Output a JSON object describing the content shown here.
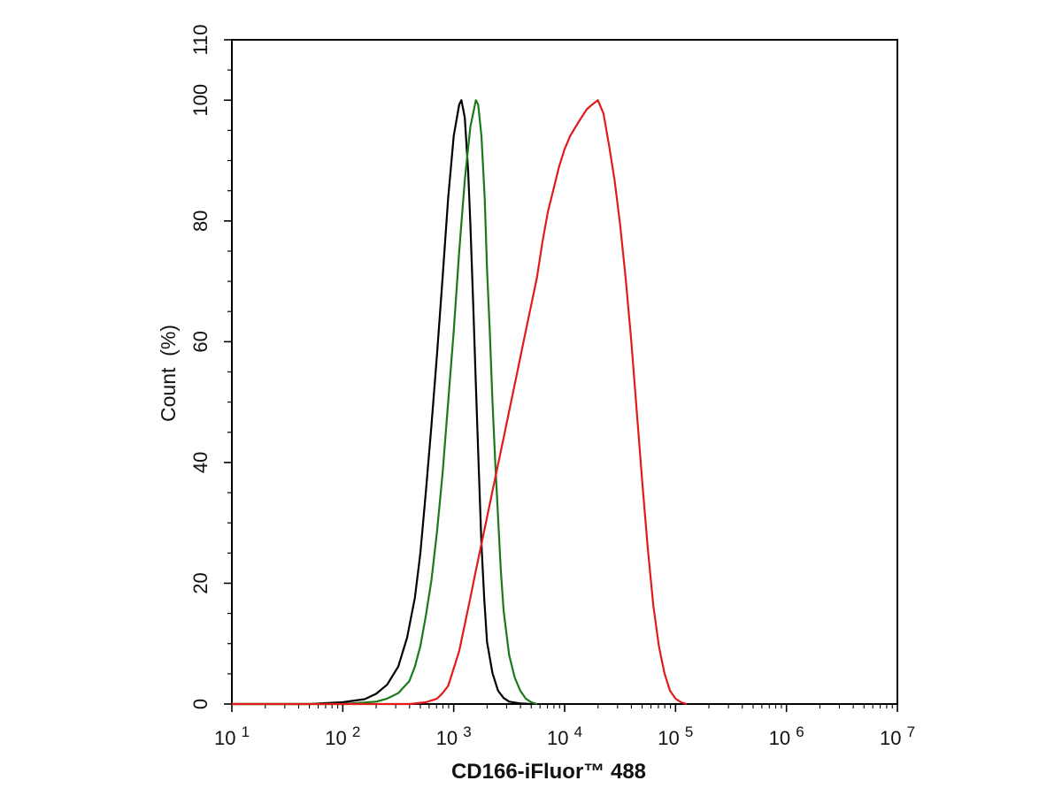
{
  "chart_data": {
    "type": "line",
    "title": "",
    "xlabel": "CD166-iFluor™ 488",
    "ylabel": "Count  (%)",
    "x_scale": "log",
    "xlim": [
      10,
      10000000
    ],
    "ylim": [
      0,
      110
    ],
    "grid": false,
    "legend": "none",
    "x_ticks": [
      {
        "value": 10,
        "base": "10",
        "exp": "1"
      },
      {
        "value": 100,
        "base": "10",
        "exp": "2"
      },
      {
        "value": 1000,
        "base": "10",
        "exp": "3"
      },
      {
        "value": 10000,
        "base": "10",
        "exp": "4"
      },
      {
        "value": 100000,
        "base": "10",
        "exp": "5"
      },
      {
        "value": 1000000,
        "base": "10",
        "exp": "6"
      },
      {
        "value": 10000000,
        "base": "10",
        "exp": "7"
      }
    ],
    "y_ticks": [
      0,
      20,
      40,
      60,
      80,
      100,
      110
    ],
    "y_tick_labels": [
      "0",
      "20",
      "40",
      "60",
      "80",
      "100",
      "110"
    ],
    "series": [
      {
        "color": "#000000",
        "points": [
          [
            50,
            0
          ],
          [
            100,
            0.3
          ],
          [
            158,
            0.8
          ],
          [
            200,
            1.7
          ],
          [
            251,
            3.2
          ],
          [
            316,
            6.2
          ],
          [
            380,
            11.0
          ],
          [
            447,
            17.6
          ],
          [
            501,
            25.0
          ],
          [
            562,
            35.3
          ],
          [
            631,
            46.3
          ],
          [
            708,
            58.1
          ],
          [
            794,
            70.6
          ],
          [
            891,
            83.8
          ],
          [
            1000,
            94.1
          ],
          [
            1122,
            99.3
          ],
          [
            1175,
            100
          ],
          [
            1259,
            97.1
          ],
          [
            1349,
            88.2
          ],
          [
            1413,
            79.4
          ],
          [
            1500,
            66.2
          ],
          [
            1585,
            52.9
          ],
          [
            1678,
            39.7
          ],
          [
            1778,
            26.5
          ],
          [
            1884,
            17.6
          ],
          [
            1995,
            10.3
          ],
          [
            2239,
            5.1
          ],
          [
            2512,
            2.2
          ],
          [
            2818,
            1.0
          ],
          [
            3162,
            0.4
          ],
          [
            3981,
            0.1
          ],
          [
            5000,
            0
          ]
        ]
      },
      {
        "color": "#1a7a1a",
        "points": [
          [
            100,
            0
          ],
          [
            200,
            0.4
          ],
          [
            251,
            0.9
          ],
          [
            316,
            1.8
          ],
          [
            398,
            3.8
          ],
          [
            447,
            6.2
          ],
          [
            501,
            9.6
          ],
          [
            562,
            14.7
          ],
          [
            631,
            20.6
          ],
          [
            708,
            28.7
          ],
          [
            794,
            38.2
          ],
          [
            891,
            50.0
          ],
          [
            1000,
            61.8
          ],
          [
            1122,
            75.0
          ],
          [
            1259,
            86.8
          ],
          [
            1413,
            95.6
          ],
          [
            1585,
            100
          ],
          [
            1660,
            99.3
          ],
          [
            1778,
            94.1
          ],
          [
            1905,
            83.8
          ],
          [
            1995,
            72.1
          ],
          [
            2113,
            61.8
          ],
          [
            2239,
            50.0
          ],
          [
            2371,
            39.7
          ],
          [
            2512,
            30.9
          ],
          [
            2661,
            22.1
          ],
          [
            2818,
            15.4
          ],
          [
            3162,
            8.1
          ],
          [
            3548,
            4.4
          ],
          [
            3981,
            2.2
          ],
          [
            4467,
            0.9
          ],
          [
            5012,
            0.3
          ],
          [
            5623,
            0
          ]
        ]
      },
      {
        "color": "#e31a1a",
        "points": [
          [
            400,
            0
          ],
          [
            562,
            0.3
          ],
          [
            708,
            0.9
          ],
          [
            794,
            1.8
          ],
          [
            891,
            3.0
          ],
          [
            1000,
            5.9
          ],
          [
            1122,
            8.8
          ],
          [
            1259,
            13.2
          ],
          [
            1413,
            17.6
          ],
          [
            1585,
            22.1
          ],
          [
            1778,
            26.5
          ],
          [
            1995,
            30.9
          ],
          [
            2239,
            35.3
          ],
          [
            2512,
            39.7
          ],
          [
            2818,
            44.1
          ],
          [
            3162,
            48.5
          ],
          [
            3548,
            52.9
          ],
          [
            3981,
            57.4
          ],
          [
            4467,
            61.8
          ],
          [
            5012,
            66.2
          ],
          [
            5623,
            70.6
          ],
          [
            6310,
            76.5
          ],
          [
            7079,
            81.6
          ],
          [
            7943,
            85.3
          ],
          [
            8913,
            89.0
          ],
          [
            10000,
            91.9
          ],
          [
            11220,
            94.1
          ],
          [
            12589,
            95.6
          ],
          [
            14125,
            97.1
          ],
          [
            15849,
            98.5
          ],
          [
            17783,
            99.3
          ],
          [
            19953,
            100
          ],
          [
            22387,
            97.8
          ],
          [
            25119,
            92.6
          ],
          [
            28184,
            86.8
          ],
          [
            31623,
            79.4
          ],
          [
            35481,
            70.6
          ],
          [
            39811,
            60.3
          ],
          [
            44668,
            48.5
          ],
          [
            50119,
            36.8
          ],
          [
            56234,
            25.7
          ],
          [
            63096,
            16.2
          ],
          [
            70795,
            9.6
          ],
          [
            79433,
            5.1
          ],
          [
            89125,
            2.2
          ],
          [
            100000,
            0.9
          ],
          [
            112202,
            0.3
          ],
          [
            125893,
            0
          ]
        ]
      }
    ]
  }
}
